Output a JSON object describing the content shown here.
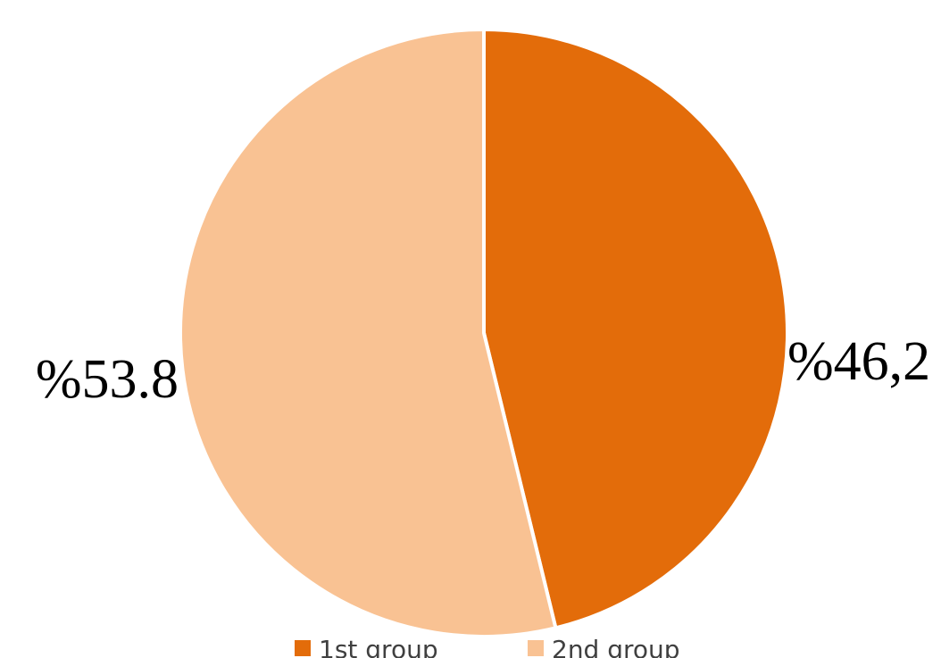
{
  "chart_data": {
    "type": "pie",
    "categories": [
      "1st group",
      "2nd group"
    ],
    "values": [
      46.2,
      53.8
    ],
    "data_labels": [
      "%46,2",
      "%53.8"
    ],
    "colors": [
      "#E36C0A",
      "#F9C293"
    ],
    "start_angle_deg": 0,
    "direction": "clockwise",
    "legend": {
      "placement": "bottom",
      "items": [
        "1st group",
        "2nd group"
      ]
    }
  }
}
